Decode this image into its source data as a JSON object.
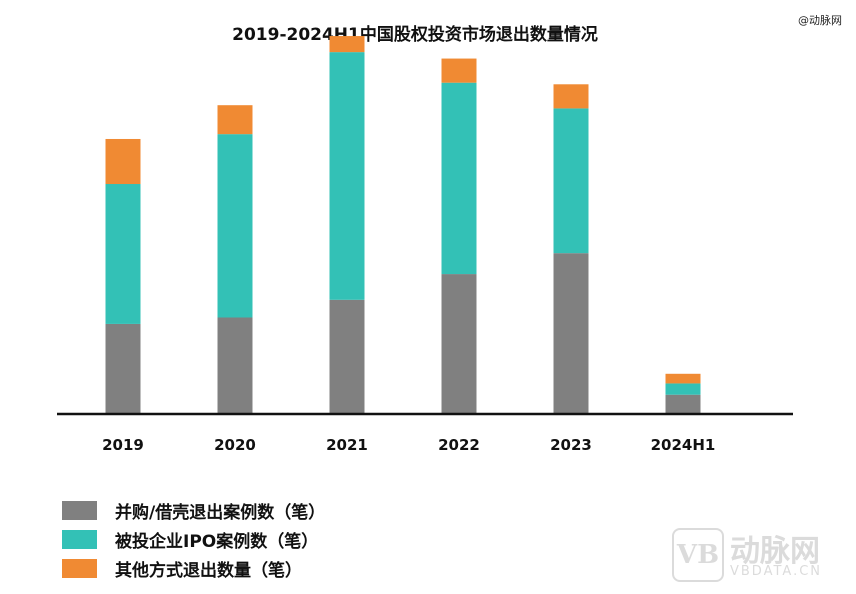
{
  "watermark": {
    "top_text": "@动脉网",
    "logo_mark": "VB",
    "logo_cn": "动脉网",
    "logo_en": "VBDATA.CN"
  },
  "chart_data": {
    "type": "bar",
    "stacked": true,
    "title": "2019-2024H1中国股权投资市场退出数量情况",
    "categories": [
      "2019",
      "2020",
      "2021",
      "2022",
      "2023",
      "2024H1"
    ],
    "series": [
      {
        "name": "并购/借壳退出案例数（笔）",
        "color": "#808080",
        "values": [
          560,
          600,
          710,
          870,
          1000,
          120
        ]
      },
      {
        "name": "被投企业IPO案例数（笔）",
        "color": "#33c1b6",
        "values": [
          870,
          1140,
          1540,
          1190,
          900,
          70
        ]
      },
      {
        "name": "其他方式退出数量（笔）",
        "color": "#f08a33",
        "values": [
          280,
          180,
          100,
          150,
          150,
          60
        ]
      }
    ],
    "ylim": [
      0,
      2400
    ],
    "grid": false,
    "legend_position": "bottom-left",
    "colors": {
      "axis": "#111111"
    }
  }
}
